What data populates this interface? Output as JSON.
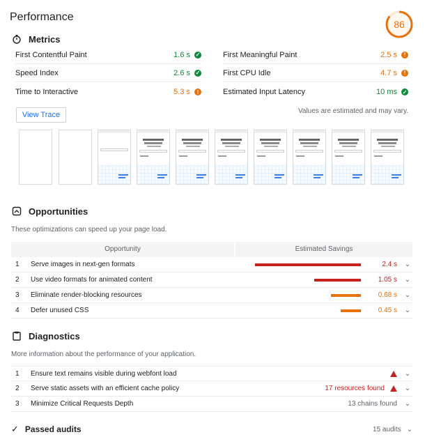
{
  "title": "Performance",
  "score": {
    "value": "86",
    "fraction": 0.86,
    "color": "#e8710a"
  },
  "metrics": {
    "heading": "Metrics",
    "left": [
      {
        "label": "First Contentful Paint",
        "value": "1.6 s",
        "status": "pass"
      },
      {
        "label": "Speed Index",
        "value": "2.6 s",
        "status": "pass"
      },
      {
        "label": "Time to Interactive",
        "value": "5.3 s",
        "status": "average"
      }
    ],
    "right": [
      {
        "label": "First Meaningful Paint",
        "value": "2.5 s",
        "status": "average"
      },
      {
        "label": "First CPU Idle",
        "value": "4.7 s",
        "status": "average"
      },
      {
        "label": "Estimated Input Latency",
        "value": "10 ms",
        "status": "pass"
      }
    ],
    "view_trace": "View Trace",
    "note": "Values are estimated and may vary."
  },
  "filmstrip": {
    "frames": 10,
    "thumb_text": "Build anything with Google"
  },
  "opportunities": {
    "heading": "Opportunities",
    "subtitle": "These optimizations can speed up your page load.",
    "col_opportunity": "Opportunity",
    "col_savings": "Estimated Savings",
    "items": [
      {
        "index": "1",
        "title": "Serve images in next-gen formats",
        "savings": "2.4 s",
        "fraction": 1.0,
        "color": "#c5221f"
      },
      {
        "index": "2",
        "title": "Use video formats for animated content",
        "savings": "1.05 s",
        "fraction": 0.44,
        "color": "#c5221f"
      },
      {
        "index": "3",
        "title": "Eliminate render-blocking resources",
        "savings": "0.68 s",
        "fraction": 0.28,
        "color": "#e8710a"
      },
      {
        "index": "4",
        "title": "Defer unused CSS",
        "savings": "0.45 s",
        "fraction": 0.19,
        "color": "#e8710a"
      }
    ]
  },
  "diagnostics": {
    "heading": "Diagnostics",
    "subtitle": "More information about the performance of your application.",
    "items": [
      {
        "index": "1",
        "title": "Ensure text remains visible during webfont load",
        "value": ""
      },
      {
        "index": "2",
        "title": "Serve static assets with an efficient cache policy",
        "value": "17 resources found"
      },
      {
        "index": "3",
        "title": "Minimize Critical Requests Depth",
        "value": "13 chains found"
      }
    ]
  },
  "passed": {
    "title": "Passed audits",
    "count": "15 audits"
  }
}
